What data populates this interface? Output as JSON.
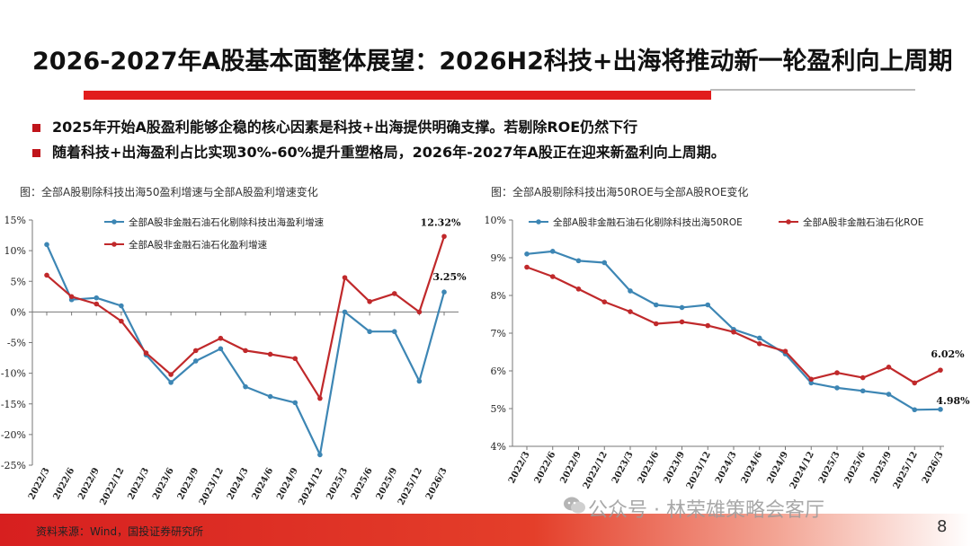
{
  "page": {
    "title": "2026-2027年A股基本面整体展望：2026H2科技+出海将推动新一轮盈利向上周期",
    "bullets": [
      "2025年开始A股盈利能够企稳的核心因素是科技+出海提供明确支撑。若剔除ROE仍然下行",
      "随着科技+出海盈利占比实现30%-60%提升重塑格局，2026年-2027年A股正在迎来新盈利向上周期。"
    ],
    "source": "资料来源：Wind，国投证券研究所",
    "watermark": "公众号 · 林荣雄策略会客厅",
    "page_number": "8",
    "colors": {
      "blue": "#3d86b4",
      "red": "#c0292b",
      "accent": "#e11d1d"
    }
  },
  "chart_data": [
    {
      "type": "line",
      "caption": "图：全部A股剔除科技出海50盈利增速与全部A股盈利增速变化",
      "categories": [
        "2022/3",
        "2022/6",
        "2022/9",
        "2022/12",
        "2023/3",
        "2023/6",
        "2023/9",
        "2023/12",
        "2024/3",
        "2024/6",
        "2024/9",
        "2024/12",
        "2025/3",
        "2025/6",
        "2025/9",
        "2025/12",
        "2026/3"
      ],
      "yticks": [
        "15%",
        "10%",
        "5%",
        "0%",
        "-5%",
        "-10%",
        "-15%",
        "-20%",
        "-25%"
      ],
      "ylim": [
        -25,
        15
      ],
      "grid": false,
      "legend_position": "top",
      "series": [
        {
          "name": "全部A股非金融石油石化剔除科技出海盈利增速",
          "color": "#3d86b4",
          "values": [
            11.0,
            2.0,
            2.3,
            1.0,
            -7.0,
            -11.5,
            -8.0,
            -6.0,
            -12.2,
            -13.8,
            -14.8,
            -23.3,
            0.0,
            -3.2,
            -3.2,
            -11.3,
            3.25
          ]
        },
        {
          "name": "全部A股非金融石油石化盈利增速",
          "color": "#c0292b",
          "values": [
            6.0,
            2.5,
            1.3,
            -1.5,
            -6.7,
            -10.2,
            -6.3,
            -4.3,
            -6.3,
            -6.9,
            -7.6,
            -14.1,
            5.6,
            1.7,
            3.0,
            0.0,
            12.32
          ]
        }
      ],
      "annotations": [
        {
          "label": "12.32%",
          "series": 1,
          "index": 16
        },
        {
          "label": "3.25%",
          "series": 0,
          "index": 16
        }
      ]
    },
    {
      "type": "line",
      "caption": "图：全部A股剔除科技出海50ROE与全部A股ROE变化",
      "categories": [
        "2022/3",
        "2022/6",
        "2022/9",
        "2022/12",
        "2023/3",
        "2023/6",
        "2023/9",
        "2023/12",
        "2024/3",
        "2024/6",
        "2024/9",
        "2024/12",
        "2025/3",
        "2025/6",
        "2025/9",
        "2025/12",
        "2026/3"
      ],
      "yticks": [
        "10%",
        "9%",
        "8%",
        "7%",
        "6%",
        "5%",
        "4%"
      ],
      "ylim": [
        4,
        10
      ],
      "grid": false,
      "legend_position": "top",
      "series": [
        {
          "name": "全部A股非金融石油石化剔除科技出海50ROE",
          "color": "#3d86b4",
          "values": [
            9.1,
            9.17,
            8.92,
            8.87,
            8.12,
            7.75,
            7.68,
            7.75,
            7.1,
            6.87,
            6.45,
            5.68,
            5.55,
            5.47,
            5.38,
            4.97,
            4.98
          ]
        },
        {
          "name": "全部A股非金融石油石化ROE",
          "color": "#c0292b",
          "values": [
            8.75,
            8.5,
            8.17,
            7.83,
            7.57,
            7.25,
            7.3,
            7.2,
            7.03,
            6.72,
            6.52,
            5.78,
            5.95,
            5.82,
            6.1,
            5.68,
            6.02
          ]
        }
      ],
      "annotations": [
        {
          "label": "6.02%",
          "series": 1,
          "index": 16
        },
        {
          "label": "4.98%",
          "series": 0,
          "index": 16
        }
      ]
    }
  ]
}
